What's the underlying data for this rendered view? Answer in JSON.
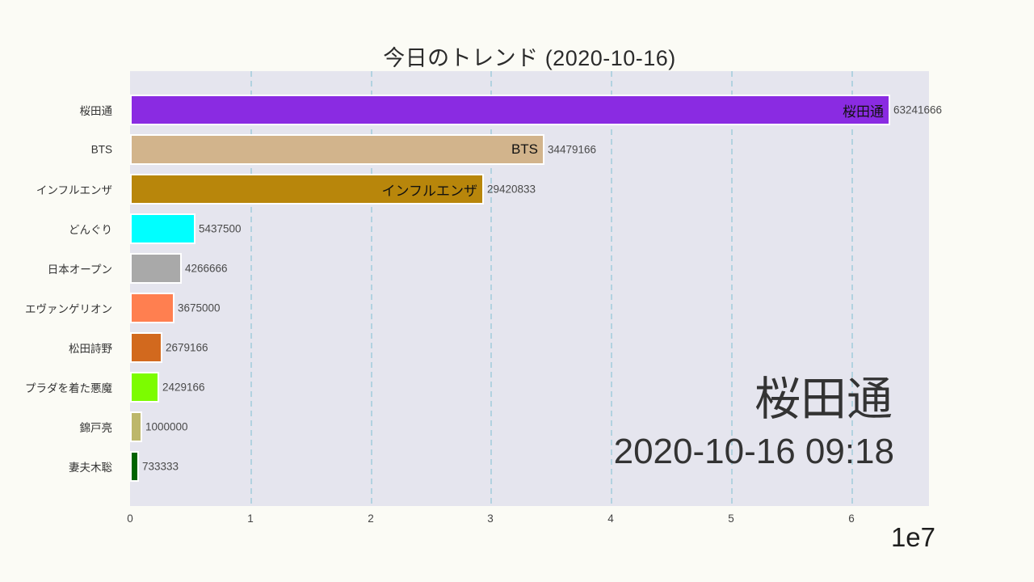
{
  "title": "今日のトレンド (2020-10-16)",
  "overlay": {
    "leader_name": "桜田通",
    "datetime": "2020-10-16 09:18"
  },
  "axis": {
    "ticks": [
      "0",
      "1",
      "2",
      "3",
      "4",
      "5",
      "6"
    ],
    "offset_label": "1e7",
    "unit": 10000000,
    "xmax_units": 6.645
  },
  "bars": [
    {
      "name": "桜田通",
      "value": 63241666,
      "value_label": "63241666",
      "inside_label": "桜田通",
      "color": "#8A2BE2"
    },
    {
      "name": "BTS",
      "value": 34479166,
      "value_label": "34479166",
      "inside_label": "BTS",
      "color": "#D2B48C"
    },
    {
      "name": "インフルエンザ",
      "value": 29420833,
      "value_label": "29420833",
      "inside_label": "インフルエンザ",
      "color": "#B8860B"
    },
    {
      "name": "どんぐり",
      "value": 5437500,
      "value_label": "5437500",
      "inside_label": "",
      "color": "#00FFFF"
    },
    {
      "name": "日本オープン",
      "value": 4266666,
      "value_label": "4266666",
      "inside_label": "",
      "color": "#A9A9A9"
    },
    {
      "name": "エヴァンゲリオン",
      "value": 3675000,
      "value_label": "3675000",
      "inside_label": "",
      "color": "#FF7F50"
    },
    {
      "name": "松田詩野",
      "value": 2679166,
      "value_label": "2679166",
      "inside_label": "",
      "color": "#D2691E"
    },
    {
      "name": "プラダを着た悪魔",
      "value": 2429166,
      "value_label": "2429166",
      "inside_label": "",
      "color": "#7CFC00"
    },
    {
      "name": "錦戸亮",
      "value": 1000000,
      "value_label": "1000000",
      "inside_label": "",
      "color": "#BDB76B"
    },
    {
      "name": "妻夫木聡",
      "value": 733333,
      "value_label": "733333",
      "inside_label": "",
      "color": "#006400"
    }
  ],
  "chart_data": {
    "type": "bar",
    "orientation": "horizontal",
    "title": "今日のトレンド (2020-10-16)",
    "categories": [
      "桜田通",
      "BTS",
      "インフルエンザ",
      "どんぐり",
      "日本オープン",
      "エヴァンゲリオン",
      "松田詩野",
      "プラダを着た悪魔",
      "錦戸亮",
      "妻夫木聡"
    ],
    "values": [
      63241666,
      34479166,
      29420833,
      5437500,
      4266666,
      3675000,
      2679166,
      2429166,
      1000000,
      733333
    ],
    "bar_colors": [
      "#8A2BE2",
      "#D2B48C",
      "#B8860B",
      "#00FFFF",
      "#A9A9A9",
      "#FF7F50",
      "#D2691E",
      "#7CFC00",
      "#BDB76B",
      "#006400"
    ],
    "xlabel": "",
    "ylabel": "",
    "xlim": [
      0,
      66450000
    ],
    "x_tick_labels": [
      "0",
      "1",
      "2",
      "3",
      "4",
      "5",
      "6"
    ],
    "x_offset_multiplier": "1e7",
    "grid": true,
    "grid_style": "dashed-vertical",
    "plot_background": "#e5e5ee",
    "page_background": "#fbfbf5",
    "annotations": [
      "桜田通",
      "2020-10-16 09:18"
    ]
  }
}
